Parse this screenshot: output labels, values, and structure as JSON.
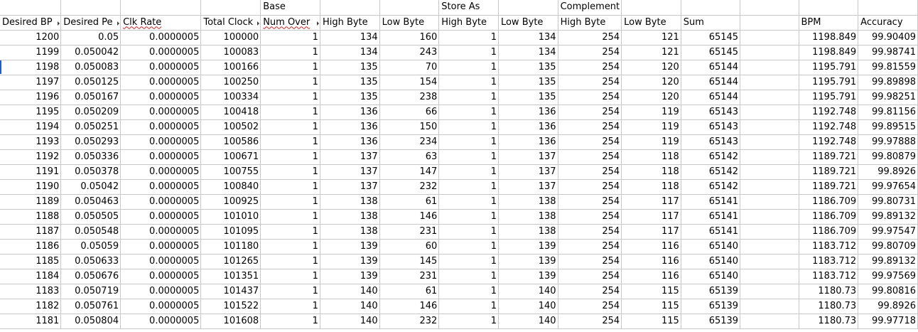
{
  "group_headers": {
    "base": "Base",
    "store_as": "Store As",
    "complement": "Complement"
  },
  "columns": [
    "Desired BP",
    "Desired Pe",
    "Clk Rate",
    "Total Clock",
    "Num Over",
    "High Byte",
    "Low Byte",
    "High Byte",
    "Low Byte",
    "High Byte",
    "Low Byte",
    "Sum",
    "",
    "BPM",
    "Accuracy"
  ],
  "rows": [
    [
      "1200",
      "0.05",
      "0.0000005",
      "100000",
      "1",
      "134",
      "160",
      "1",
      "134",
      "254",
      "121",
      "65145",
      "",
      "1198.849",
      "99.90409"
    ],
    [
      "1199",
      "0.050042",
      "0.0000005",
      "100083",
      "1",
      "134",
      "243",
      "1",
      "134",
      "254",
      "121",
      "65145",
      "",
      "1198.849",
      "99.98741"
    ],
    [
      "1198",
      "0.050083",
      "0.0000005",
      "100166",
      "1",
      "135",
      "70",
      "1",
      "135",
      "254",
      "120",
      "65144",
      "",
      "1195.791",
      "99.81559"
    ],
    [
      "1197",
      "0.050125",
      "0.0000005",
      "100250",
      "1",
      "135",
      "154",
      "1",
      "135",
      "254",
      "120",
      "65144",
      "",
      "1195.791",
      "99.89898"
    ],
    [
      "1196",
      "0.050167",
      "0.0000005",
      "100334",
      "1",
      "135",
      "238",
      "1",
      "135",
      "254",
      "120",
      "65144",
      "",
      "1195.791",
      "99.98251"
    ],
    [
      "1195",
      "0.050209",
      "0.0000005",
      "100418",
      "1",
      "136",
      "66",
      "1",
      "136",
      "254",
      "119",
      "65143",
      "",
      "1192.748",
      "99.81156"
    ],
    [
      "1194",
      "0.050251",
      "0.0000005",
      "100502",
      "1",
      "136",
      "150",
      "1",
      "136",
      "254",
      "119",
      "65143",
      "",
      "1192.748",
      "99.89515"
    ],
    [
      "1193",
      "0.050293",
      "0.0000005",
      "100586",
      "1",
      "136",
      "234",
      "1",
      "136",
      "254",
      "119",
      "65143",
      "",
      "1192.748",
      "99.97888"
    ],
    [
      "1192",
      "0.050336",
      "0.0000005",
      "100671",
      "1",
      "137",
      "63",
      "1",
      "137",
      "254",
      "118",
      "65142",
      "",
      "1189.721",
      "99.80879"
    ],
    [
      "1191",
      "0.050378",
      "0.0000005",
      "100755",
      "1",
      "137",
      "147",
      "1",
      "137",
      "254",
      "118",
      "65142",
      "",
      "1189.721",
      "99.8926"
    ],
    [
      "1190",
      "0.05042",
      "0.0000005",
      "100840",
      "1",
      "137",
      "232",
      "1",
      "137",
      "254",
      "118",
      "65142",
      "",
      "1189.721",
      "99.97654"
    ],
    [
      "1189",
      "0.050463",
      "0.0000005",
      "100925",
      "1",
      "138",
      "61",
      "1",
      "138",
      "254",
      "117",
      "65141",
      "",
      "1186.709",
      "99.80731"
    ],
    [
      "1188",
      "0.050505",
      "0.0000005",
      "101010",
      "1",
      "138",
      "146",
      "1",
      "138",
      "254",
      "117",
      "65141",
      "",
      "1186.709",
      "99.89132"
    ],
    [
      "1187",
      "0.050548",
      "0.0000005",
      "101095",
      "1",
      "138",
      "231",
      "1",
      "138",
      "254",
      "117",
      "65141",
      "",
      "1186.709",
      "99.97547"
    ],
    [
      "1186",
      "0.05059",
      "0.0000005",
      "101180",
      "1",
      "139",
      "60",
      "1",
      "139",
      "254",
      "116",
      "65140",
      "",
      "1183.712",
      "99.80709"
    ],
    [
      "1185",
      "0.050633",
      "0.0000005",
      "101265",
      "1",
      "139",
      "145",
      "1",
      "139",
      "254",
      "116",
      "65140",
      "",
      "1183.712",
      "99.89132"
    ],
    [
      "1184",
      "0.050676",
      "0.0000005",
      "101351",
      "1",
      "139",
      "231",
      "1",
      "139",
      "254",
      "116",
      "65140",
      "",
      "1183.712",
      "99.97569"
    ],
    [
      "1183",
      "0.050719",
      "0.0000005",
      "101437",
      "1",
      "140",
      "61",
      "1",
      "140",
      "254",
      "115",
      "65139",
      "",
      "1180.73",
      "99.80816"
    ],
    [
      "1182",
      "0.050761",
      "0.0000005",
      "101522",
      "1",
      "140",
      "146",
      "1",
      "140",
      "254",
      "115",
      "65139",
      "",
      "1180.73",
      "99.8926"
    ],
    [
      "1181",
      "0.050804",
      "0.0000005",
      "101608",
      "1",
      "140",
      "232",
      "1",
      "140",
      "254",
      "115",
      "65139",
      "",
      "1180.73",
      "99.97718"
    ]
  ],
  "colors": {
    "gridline": "#c8c8c8",
    "spellcheck": "#d02020",
    "cursor": "#1a5fd0"
  }
}
